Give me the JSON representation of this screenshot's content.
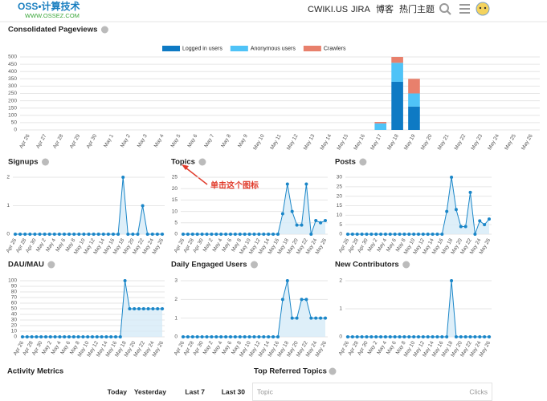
{
  "header": {
    "logo": "OSS•计算技术",
    "logo_subtitle": "WWW.OSSEZ.COM",
    "nav": [
      "CWIKI.US",
      "JIRA",
      "博客",
      "热门主题"
    ]
  },
  "chart_data": [
    {
      "type": "bar",
      "title": "Consolidated Pageviews",
      "stacked": true,
      "categories": [
        "Apr 26",
        "Apr 27",
        "Apr 28",
        "Apr 29",
        "Apr 30",
        "May 1",
        "May 2",
        "May 3",
        "May 4",
        "May 5",
        "May 6",
        "May 7",
        "May 8",
        "May 9",
        "May 10",
        "May 11",
        "May 12",
        "May 13",
        "May 14",
        "May 15",
        "May 16",
        "May 17",
        "May 18",
        "May 19",
        "May 20",
        "May 21",
        "May 22",
        "May 23",
        "May 24",
        "May 25",
        "May 26"
      ],
      "series": [
        {
          "name": "Logged in users",
          "color": "#0e7ac4",
          "values": [
            0,
            0,
            0,
            0,
            0,
            0,
            0,
            0,
            0,
            0,
            0,
            0,
            0,
            0,
            0,
            0,
            0,
            0,
            0,
            0,
            0,
            0,
            330,
            160,
            0,
            0,
            0,
            0,
            0,
            0,
            0
          ]
        },
        {
          "name": "Anonymous users",
          "color": "#4fc3f7",
          "values": [
            0,
            0,
            0,
            0,
            0,
            0,
            0,
            0,
            0,
            0,
            0,
            0,
            0,
            0,
            0,
            0,
            0,
            0,
            0,
            0,
            0,
            45,
            130,
            90,
            0,
            0,
            0,
            0,
            0,
            0,
            0
          ]
        },
        {
          "name": "Crawlers",
          "color": "#e8806c",
          "values": [
            0,
            0,
            0,
            0,
            0,
            0,
            0,
            0,
            0,
            0,
            0,
            0,
            0,
            0,
            0,
            0,
            0,
            0,
            0,
            0,
            0,
            10,
            40,
            100,
            0,
            0,
            0,
            0,
            0,
            0,
            0
          ]
        }
      ],
      "ylim": [
        0,
        500
      ],
      "yticks": [
        0,
        50,
        100,
        150,
        200,
        250,
        300,
        350,
        400,
        450,
        500
      ],
      "grid": true
    },
    {
      "type": "line",
      "title": "Signups",
      "color": "#1a86c8",
      "categories": [
        "Apr 26",
        null,
        "Apr 28",
        null,
        "Apr 30",
        null,
        "May 2",
        null,
        "May 4",
        null,
        "May 6",
        null,
        "May 8",
        null,
        "May 10",
        null,
        "May 12",
        null,
        "May 14",
        null,
        "May 16",
        null,
        "May 18",
        null,
        "May 20",
        null,
        "May 22",
        null,
        "May 24",
        null,
        "May 26"
      ],
      "values": [
        0,
        0,
        0,
        0,
        0,
        0,
        0,
        0,
        0,
        0,
        0,
        0,
        0,
        0,
        0,
        0,
        0,
        0,
        0,
        0,
        0,
        0,
        2,
        0,
        0,
        0,
        1,
        0,
        0,
        0,
        0
      ],
      "ylim": [
        0,
        2
      ],
      "yticks": [
        0,
        1,
        2
      ],
      "grid": true
    },
    {
      "type": "line",
      "title": "Topics",
      "color": "#1a86c8",
      "annotation": "单击这个图标",
      "categories": [
        "Apr 26",
        null,
        "Apr 28",
        null,
        "Apr 30",
        null,
        "May 2",
        null,
        "May 4",
        null,
        "May 6",
        null,
        "May 8",
        null,
        "May 10",
        null,
        "May 12",
        null,
        "May 14",
        null,
        "May 16",
        null,
        "May 18",
        null,
        "May 20",
        null,
        "May 22",
        null,
        "May 24",
        null,
        "May 26"
      ],
      "values": [
        0,
        0,
        0,
        0,
        0,
        0,
        0,
        0,
        0,
        0,
        0,
        0,
        0,
        0,
        0,
        0,
        0,
        0,
        0,
        0,
        0,
        9,
        22,
        10,
        4,
        4,
        22,
        0,
        6,
        5,
        6
      ],
      "ylim": [
        0,
        25
      ],
      "yticks": [
        0,
        5,
        10,
        15,
        20,
        25
      ],
      "grid": true
    },
    {
      "type": "line",
      "title": "Posts",
      "color": "#1a86c8",
      "categories": [
        "Apr 26",
        null,
        "Apr 28",
        null,
        "Apr 30",
        null,
        "May 2",
        null,
        "May 4",
        null,
        "May 6",
        null,
        "May 8",
        null,
        "May 10",
        null,
        "May 12",
        null,
        "May 14",
        null,
        "May 16",
        null,
        "May 18",
        null,
        "May 20",
        null,
        "May 22",
        null,
        "May 24",
        null,
        "May 26"
      ],
      "values": [
        0,
        0,
        0,
        0,
        0,
        0,
        0,
        0,
        0,
        0,
        0,
        0,
        0,
        0,
        0,
        0,
        0,
        0,
        0,
        0,
        0,
        12,
        30,
        13,
        4,
        4,
        22,
        0,
        7,
        5,
        8
      ],
      "ylim": [
        0,
        30
      ],
      "yticks": [
        0,
        5,
        10,
        15,
        20,
        25,
        30
      ],
      "grid": true
    },
    {
      "type": "line",
      "title": "DAU/MAU",
      "color": "#1a86c8",
      "categories": [
        "Apr 26",
        null,
        "Apr 28",
        null,
        "Apr 30",
        null,
        "May 2",
        null,
        "May 4",
        null,
        "May 6",
        null,
        "May 8",
        null,
        "May 10",
        null,
        "May 12",
        null,
        "May 14",
        null,
        "May 16",
        null,
        "May 18",
        null,
        "May 20",
        null,
        "May 22",
        null,
        "May 24",
        null,
        "May 26"
      ],
      "values": [
        0,
        0,
        0,
        0,
        0,
        0,
        0,
        0,
        0,
        0,
        0,
        0,
        0,
        0,
        0,
        0,
        0,
        0,
        0,
        0,
        0,
        0,
        100,
        50,
        50,
        50,
        50,
        50,
        50,
        50,
        50
      ],
      "ylim": [
        0,
        100
      ],
      "yticks": [
        0,
        10,
        20,
        30,
        40,
        50,
        60,
        70,
        80,
        90,
        100
      ],
      "grid": true
    },
    {
      "type": "line",
      "title": "Daily Engaged Users",
      "color": "#1a86c8",
      "categories": [
        "Apr 26",
        null,
        "Apr 28",
        null,
        "Apr 30",
        null,
        "May 2",
        null,
        "May 4",
        null,
        "May 6",
        null,
        "May 8",
        null,
        "May 10",
        null,
        "May 12",
        null,
        "May 14",
        null,
        "May 16",
        null,
        "May 18",
        null,
        "May 20",
        null,
        "May 22",
        null,
        "May 24",
        null,
        "May 26"
      ],
      "values": [
        0,
        0,
        0,
        0,
        0,
        0,
        0,
        0,
        0,
        0,
        0,
        0,
        0,
        0,
        0,
        0,
        0,
        0,
        0,
        0,
        0,
        2,
        3,
        1,
        1,
        2,
        2,
        1,
        1,
        1,
        1
      ],
      "ylim": [
        0,
        3
      ],
      "yticks": [
        0,
        1,
        2,
        3
      ],
      "grid": true
    },
    {
      "type": "line",
      "title": "New Contributors",
      "color": "#1a86c8",
      "categories": [
        "Apr 26",
        null,
        "Apr 28",
        null,
        "Apr 30",
        null,
        "May 2",
        null,
        "May 4",
        null,
        "May 6",
        null,
        "May 8",
        null,
        "May 10",
        null,
        "May 12",
        null,
        "May 14",
        null,
        "May 16",
        null,
        "May 18",
        null,
        "May 20",
        null,
        "May 22",
        null,
        "May 24",
        null,
        "May 26"
      ],
      "values": [
        0,
        0,
        0,
        0,
        0,
        0,
        0,
        0,
        0,
        0,
        0,
        0,
        0,
        0,
        0,
        0,
        0,
        0,
        0,
        0,
        0,
        0,
        2,
        0,
        0,
        0,
        0,
        0,
        0,
        0,
        0
      ],
      "ylim": [
        0,
        2
      ],
      "yticks": [
        0,
        1,
        2
      ],
      "grid": true
    }
  ],
  "activity_metrics": {
    "title": "Activity Metrics",
    "columns": [
      "Today",
      "Yesterday",
      "Last 7",
      "Last 30"
    ]
  },
  "top_referred_topics": {
    "title": "Top Referred Topics",
    "columns": [
      "Topic",
      "Clicks"
    ]
  }
}
